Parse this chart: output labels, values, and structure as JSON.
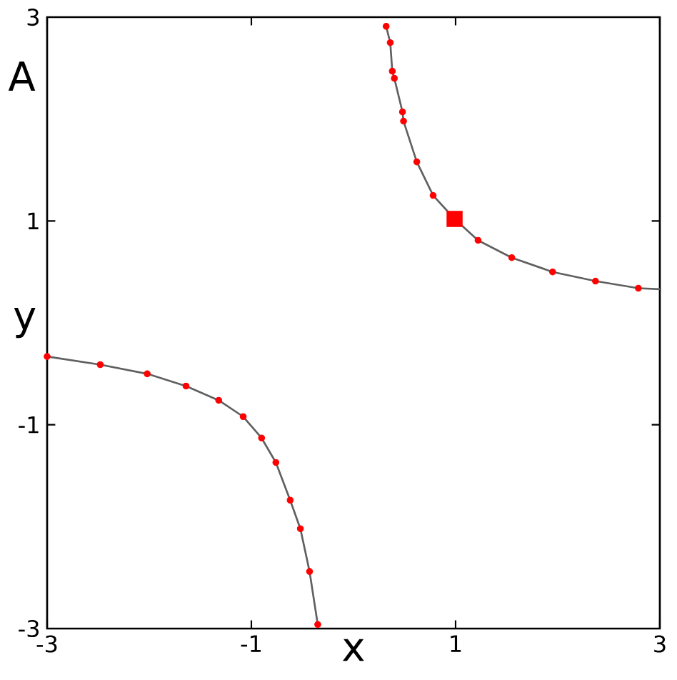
{
  "chart_data": {
    "type": "line",
    "xlabel": "x",
    "ylabel": "y",
    "annotations": [
      "A"
    ],
    "xlim": [
      -3,
      3
    ],
    "ylim": [
      -3,
      3
    ],
    "xticks": [
      -3,
      -1,
      1,
      3
    ],
    "yticks": [
      -3,
      -1,
      1,
      3
    ],
    "series": [
      {
        "color": "#606060",
        "marker": "none",
        "x": [
          0.32,
          0.36,
          0.38,
          0.4,
          0.48,
          0.49,
          0.62,
          0.78,
          0.99,
          1.22,
          1.55,
          1.95,
          2.37,
          2.79,
          3.0
        ],
        "values": [
          2.91,
          2.75,
          2.47,
          2.4,
          2.07,
          1.98,
          1.58,
          1.25,
          1.02,
          0.81,
          0.64,
          0.5,
          0.41,
          0.34,
          0.33
        ]
      },
      {
        "color": "#606060",
        "marker": "none",
        "x": [
          -3.0,
          -2.48,
          -2.02,
          -1.64,
          -1.32,
          -1.08,
          -0.9,
          -0.76,
          -0.62,
          -0.52,
          -0.43,
          -0.35
        ],
        "values": [
          -0.33,
          -0.41,
          -0.5,
          -0.62,
          -0.76,
          -0.92,
          -1.13,
          -1.37,
          -1.74,
          -2.02,
          -2.44,
          -2.96
        ]
      },
      {
        "type": "scatter",
        "color": "#ff0000",
        "marker": "circle",
        "x": [
          0.32,
          0.36,
          0.38,
          0.4,
          0.48,
          0.49,
          0.62,
          0.78,
          1.22,
          1.55,
          1.95,
          2.37,
          2.79,
          -3.0,
          -2.48,
          -2.02,
          -1.64,
          -1.32,
          -1.08,
          -0.9,
          -0.76,
          -0.62,
          -0.52,
          -0.43,
          -0.35
        ],
        "values": [
          2.91,
          2.75,
          2.47,
          2.4,
          2.07,
          1.98,
          1.58,
          1.25,
          0.81,
          0.64,
          0.5,
          0.41,
          0.34,
          -0.33,
          -0.41,
          -0.5,
          -0.62,
          -0.76,
          -0.92,
          -1.13,
          -1.37,
          -1.74,
          -2.02,
          -2.44,
          -2.96
        ]
      },
      {
        "type": "scatter",
        "color": "#ff0000",
        "marker": "square",
        "x": [
          0.99
        ],
        "values": [
          1.02
        ]
      }
    ]
  }
}
